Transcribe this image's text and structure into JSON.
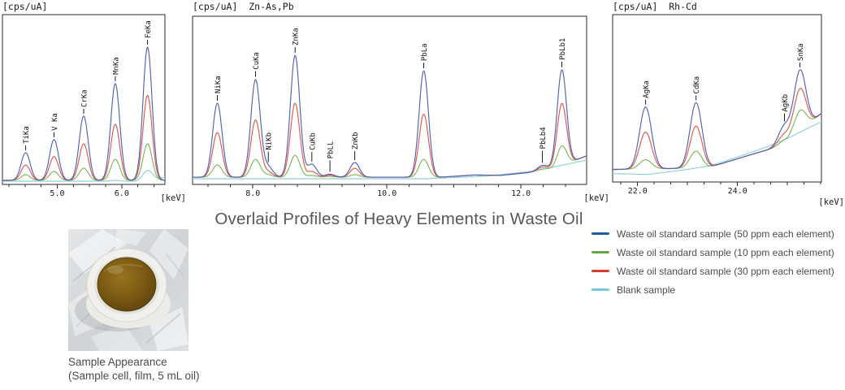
{
  "figure": {
    "title": "Overlaid Profiles of Heavy Elements in Waste Oil",
    "caption_line1": "Sample Appearance",
    "caption_line2": "(Sample cell, film, 5 mL oil)"
  },
  "legend": {
    "items": [
      {
        "id": "ppm50",
        "label": "Waste oil standard sample (50 ppm each element)",
        "color": "#2058a8"
      },
      {
        "id": "ppm10",
        "label": "Waste oil standard sample (10 ppm each element)",
        "color": "#66a83d"
      },
      {
        "id": "ppm30",
        "label": "Waste oil standard sample (30 ppm each element)",
        "color": "#d63e2d"
      },
      {
        "id": "blank",
        "label": "Blank sample",
        "color": "#79c8d8"
      }
    ]
  },
  "series_style": {
    "draw_order": [
      "blank",
      "ppm10",
      "ppm30",
      "ppm50"
    ],
    "curve_colors": {
      "ppm50": "#5063b4",
      "ppm30": "#e0584c",
      "ppm10": "#7cb958",
      "blank": "#8fd1da"
    }
  },
  "chart_data": [
    {
      "type": "line",
      "header": "[cps/uA]",
      "region_label": "",
      "xlabel": "[keV]",
      "ylabel": "cps/uA",
      "y_axis": {
        "labeled": false,
        "units_note": "peak heights in % of panel height (y axis unlabeled in original)"
      },
      "xlim": [
        4.15,
        6.67
      ],
      "x_tick_labels": [
        {
          "v": 5.0,
          "t": "5.0"
        },
        {
          "v": 6.0,
          "t": "6.0"
        }
      ],
      "x_minor_tick_step": 0.25,
      "peak_sigma_kev": 0.07,
      "peaks": [
        {
          "label": "TiKa",
          "kev": 4.51,
          "lead": 6,
          "amp": {
            "ppm50": 16.3,
            "ppm30": 9,
            "ppm10": 3.3,
            "blank": 0
          }
        },
        {
          "label": "V Ka",
          "kev": 4.95,
          "lead": 6,
          "amp": {
            "ppm50": 24,
            "ppm30": 14,
            "ppm10": 5.3,
            "blank": 0
          }
        },
        {
          "label": "CrKa",
          "kev": 5.41,
          "lead": 6,
          "amp": {
            "ppm50": 37.8,
            "ppm30": 21.5,
            "ppm10": 7.2,
            "blank": 0
          }
        },
        {
          "label": "MnKa",
          "kev": 5.9,
          "lead": 6,
          "amp": {
            "ppm50": 57,
            "ppm30": 33,
            "ppm10": 12.4,
            "blank": 0.5
          }
        },
        {
          "label": "FeKa",
          "kev": 6.4,
          "lead": 6,
          "amp": {
            "ppm50": 78.5,
            "ppm30": 50,
            "ppm10": 21.5,
            "blank": 5.5
          }
        }
      ],
      "background": {
        "standards": [
          [
            4.15,
            2.4
          ],
          [
            6.67,
            2.4
          ]
        ],
        "blank": [
          [
            4.15,
            1.9
          ],
          [
            6.2,
            1.9
          ],
          [
            6.67,
            4
          ]
        ]
      }
    },
    {
      "type": "line",
      "header": "[cps/uA]",
      "region_label": "Zn-As,Pb",
      "xlabel": "[keV]",
      "ylabel": "cps/uA",
      "y_axis": {
        "labeled": false,
        "units_note": "peak heights in % of panel height (y axis unlabeled in original)"
      },
      "xlim": [
        7.1,
        12.98
      ],
      "x_tick_labels": [
        {
          "v": 8.0,
          "t": "8.0"
        },
        {
          "v": 10.0,
          "t": "10.0"
        },
        {
          "v": 12.0,
          "t": "12.0"
        }
      ],
      "x_minor_tick_step": 0.3333,
      "peak_sigma_kev": 0.07,
      "peaks": [
        {
          "label": "NiKa",
          "kev": 7.47,
          "lead": 7,
          "amp": {
            "ppm50": 44,
            "ppm30": 26.5,
            "ppm10": 7.3,
            "blank": 0
          }
        },
        {
          "label": "CuKa",
          "kev": 8.04,
          "lead": 7,
          "amp": {
            "ppm50": 58,
            "ppm30": 34,
            "ppm10": 10.6,
            "blank": 0
          }
        },
        {
          "label": "NiKb",
          "kev": 8.23,
          "lead": 13,
          "amp": {
            "ppm50": 6,
            "ppm30": 3,
            "ppm10": 1.4,
            "blank": 0
          }
        },
        {
          "label": "ZnKa",
          "kev": 8.63,
          "lead": 7,
          "amp": {
            "ppm50": 72.5,
            "ppm30": 44,
            "ppm10": 13,
            "blank": 0
          }
        },
        {
          "label": "CuKb",
          "kev": 8.88,
          "lead": 12,
          "amp": {
            "ppm50": 7.7,
            "ppm30": 3.4,
            "ppm10": 1,
            "blank": 0
          }
        },
        {
          "label": "PbLL",
          "kev": 9.15,
          "lead": 14,
          "amp": {
            "ppm50": 1.8,
            "ppm30": 1.2,
            "ppm10": 0.5,
            "blank": 0
          }
        },
        {
          "label": "ZnKb",
          "kev": 9.52,
          "lead": 11,
          "amp": {
            "ppm50": 8.7,
            "ppm30": 5.3,
            "ppm10": 1.5,
            "blank": 0
          }
        },
        {
          "label": "PbLa",
          "kev": 10.55,
          "lead": 7,
          "amp": {
            "ppm50": 63.3,
            "ppm30": 37.5,
            "ppm10": 10.6,
            "blank": 0
          }
        },
        {
          "label": "PbLb4",
          "kev": 12.32,
          "lead": 15,
          "amp": {
            "ppm50": 3,
            "ppm30": 2,
            "ppm10": 0.8,
            "blank": 0
          }
        },
        {
          "label": "PbLb1",
          "kev": 12.61,
          "lead": 7,
          "amp": {
            "ppm50": 57,
            "ppm30": 37,
            "ppm10": 11.7,
            "blank": 0
          }
        }
      ],
      "background": {
        "standards": [
          [
            7.1,
            4.3
          ],
          [
            10.8,
            4.3
          ],
          [
            11.3,
            5.6
          ],
          [
            11.7,
            5.4
          ],
          [
            12.1,
            7
          ],
          [
            12.5,
            9.5
          ],
          [
            12.98,
            17
          ]
        ],
        "blank": [
          [
            7.1,
            3.4
          ],
          [
            10.6,
            3.4
          ],
          [
            11.5,
            5
          ],
          [
            12.2,
            8
          ],
          [
            12.98,
            14.5
          ]
        ]
      }
    },
    {
      "type": "line",
      "header": "[cps/uA]",
      "region_label": "Rh-Cd",
      "xlabel": "[keV]",
      "ylabel": "cps/uA",
      "y_axis": {
        "labeled": false,
        "units_note": "peak heights in % of panel height (y axis unlabeled in original)"
      },
      "xlim": [
        21.5,
        25.68
      ],
      "x_tick_labels": [
        {
          "v": 22.0,
          "t": "22.0"
        },
        {
          "v": 24.0,
          "t": "24.0"
        }
      ],
      "x_minor_tick_step": 0.3333,
      "peak_sigma_kev": 0.12,
      "peaks": [
        {
          "label": "AgKa",
          "kev": 22.16,
          "lead": 6,
          "amp": {
            "ppm50": 37,
            "ppm30": 22,
            "ppm10": 5.5,
            "blank": 0
          }
        },
        {
          "label": "CdKa",
          "kev": 23.17,
          "lead": 6,
          "amp": {
            "ppm50": 39,
            "ppm30": 25,
            "ppm10": 10,
            "blank": 0
          }
        },
        {
          "label": "AgKb",
          "kev": 24.94,
          "lead": 10,
          "amp": {
            "ppm50": 11,
            "ppm30": 6,
            "ppm10": 2.5,
            "blank": 0
          }
        },
        {
          "label": "SnKa",
          "kev": 25.25,
          "lead": 6,
          "amp": {
            "ppm50": 37,
            "ppm30": 26,
            "ppm10": 13,
            "blank": 0
          }
        }
      ],
      "background": {
        "standards": [
          [
            21.5,
            7.5
          ],
          [
            22.6,
            8
          ],
          [
            23.4,
            8.5
          ],
          [
            23.9,
            13
          ],
          [
            24.4,
            17.5
          ],
          [
            24.7,
            20
          ],
          [
            25.0,
            23
          ],
          [
            25.68,
            41
          ]
        ],
        "blank": [
          [
            21.5,
            5
          ],
          [
            22.2,
            4.5
          ],
          [
            23.0,
            7.5
          ],
          [
            23.5,
            10
          ],
          [
            24.0,
            15
          ],
          [
            24.5,
            20
          ],
          [
            25.0,
            26
          ],
          [
            25.4,
            32
          ],
          [
            25.68,
            36
          ]
        ]
      }
    }
  ]
}
